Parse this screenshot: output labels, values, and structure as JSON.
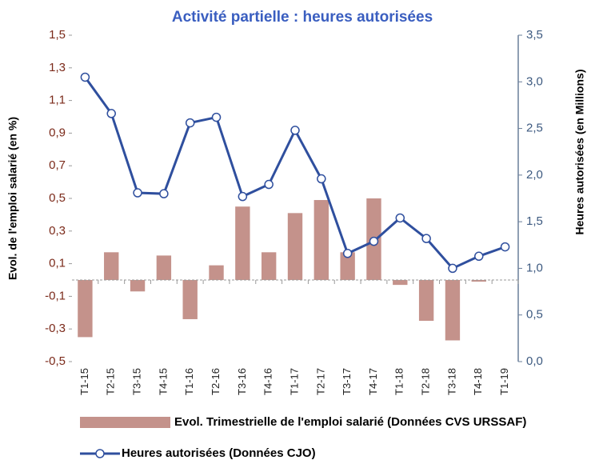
{
  "chart_data": {
    "type": "combo",
    "title": "Activité partielle : heures autorisées",
    "ylabel": "Evol. de l'emploi salarié (en %)",
    "y2label": "Heures autorisées (en Millions)",
    "categories": [
      "T1-15",
      "T2-15",
      "T3-15",
      "T4-15",
      "T1-16",
      "T2-16",
      "T3-16",
      "T4-16",
      "T1-17",
      "T2-17",
      "T3-17",
      "T4-17",
      "T1-18",
      "T2-18",
      "T3-18",
      "T4-18",
      "T1-19"
    ],
    "series": [
      {
        "name": "Evol. Trimestrielle de l'emploi salarié (Données CVS URSSAF)",
        "type": "bar",
        "color": "#c4928b",
        "values": [
          -0.35,
          0.17,
          -0.07,
          0.15,
          -0.24,
          0.09,
          0.45,
          0.17,
          0.41,
          0.49,
          0.17,
          0.5,
          -0.03,
          -0.25,
          -0.37,
          -0.01,
          null
        ]
      },
      {
        "name": "Heures autorisées (Données CJO)",
        "type": "line",
        "axis": "y2",
        "color": "#2f4f9e",
        "values": [
          3.05,
          2.66,
          1.81,
          1.8,
          2.56,
          2.62,
          1.77,
          1.9,
          2.48,
          1.96,
          1.16,
          1.29,
          1.54,
          1.32,
          1.0,
          1.13,
          1.23
        ]
      }
    ],
    "ylim": [
      -0.5,
      1.5
    ],
    "yticks": [
      {
        "value": -0.5,
        "label": "-0,5"
      },
      {
        "value": -0.3,
        "label": "-0,3"
      },
      {
        "value": -0.1,
        "label": "-0,1"
      },
      {
        "value": 0.1,
        "label": "0,1"
      },
      {
        "value": 0.3,
        "label": "0,3"
      },
      {
        "value": 0.5,
        "label": "0,5"
      },
      {
        "value": 0.7,
        "label": "0,7"
      },
      {
        "value": 0.9,
        "label": "0,9"
      },
      {
        "value": 1.1,
        "label": "1,1"
      },
      {
        "value": 1.3,
        "label": "1,3"
      },
      {
        "value": 1.5,
        "label": "1,5"
      }
    ],
    "y2lim": [
      0,
      3.5
    ],
    "y2ticks": [
      {
        "value": 0,
        "label": "0,0"
      },
      {
        "value": 0.5,
        "label": "0,5"
      },
      {
        "value": 1,
        "label": "1,0"
      },
      {
        "value": 1.5,
        "label": "1,5"
      },
      {
        "value": 2,
        "label": "2,0"
      },
      {
        "value": 2.5,
        "label": "2,5"
      },
      {
        "value": 3,
        "label": "3,0"
      },
      {
        "value": 3.5,
        "label": "3,5"
      }
    ],
    "grid": false,
    "legend": "bottom"
  }
}
